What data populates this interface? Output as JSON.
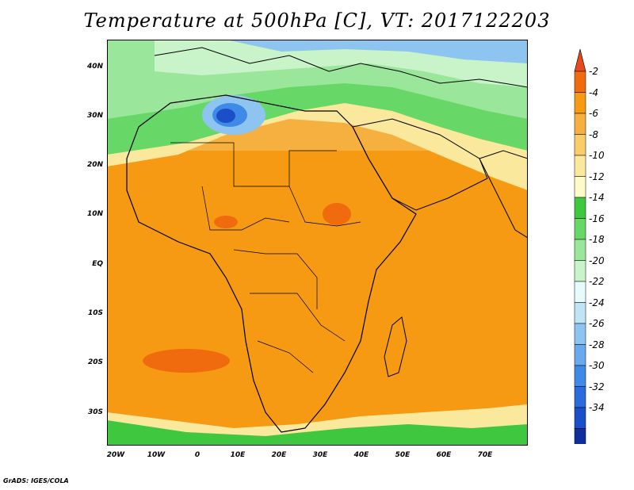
{
  "title": "Temperature at 500hPa [C], VT: 2017122203",
  "footer": "GrADS: IGES/COLA",
  "map": {
    "lat_ticks": [
      "40N",
      "30N",
      "20N",
      "10N",
      "EQ",
      "10S",
      "20S",
      "30S"
    ],
    "lon_ticks": [
      "20W",
      "10W",
      "0",
      "10E",
      "20E",
      "30E",
      "40E",
      "50E",
      "60E",
      "70E"
    ]
  },
  "colorbar": {
    "labels": [
      "-2",
      "-4",
      "-6",
      "-8",
      "-10",
      "-12",
      "-14",
      "-16",
      "-18",
      "-20",
      "-22",
      "-24",
      "-26",
      "-28",
      "-30",
      "-32",
      "-34"
    ],
    "colors": [
      "#e8481a",
      "#f06a0e",
      "#f59a12",
      "#f6b040",
      "#f8cd6a",
      "#fae89c",
      "#fdfbc8",
      "#3fc83f",
      "#67d867",
      "#9ae69a",
      "#c9f3c9",
      "#e7fbfd",
      "#bfe4f6",
      "#8ec4f0",
      "#6aa9ec",
      "#3f8ae6",
      "#2b6bdb",
      "#1b4fc8",
      "#0f2f9c",
      "#dcdcf6"
    ]
  }
}
